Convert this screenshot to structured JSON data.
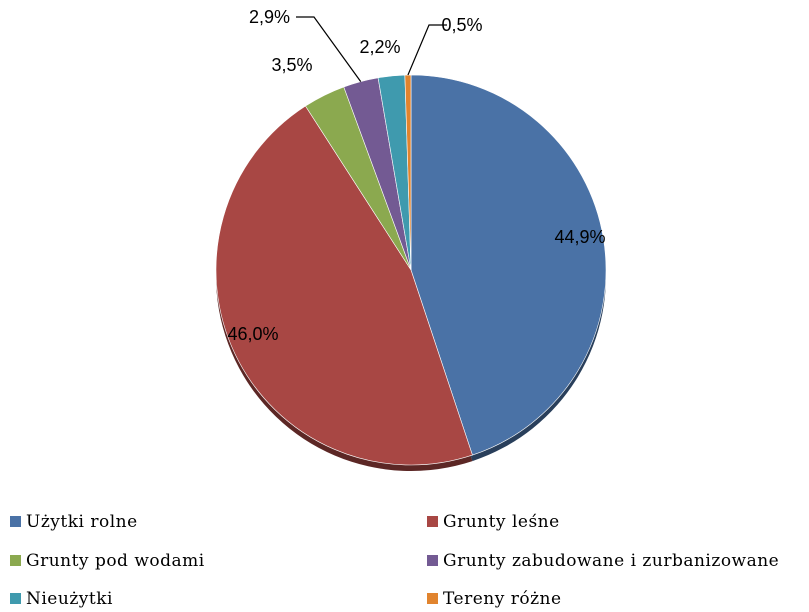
{
  "chart_data": {
    "type": "pie",
    "unit": "%",
    "slices": [
      {
        "name": "Użytki rolne",
        "value": 44.9,
        "label": "44,9%",
        "color": "#4A72A6"
      },
      {
        "name": "Grunty leśne",
        "value": 46.0,
        "label": "46,0%",
        "color": "#A84744"
      },
      {
        "name": "Grunty pod wodami",
        "value": 3.5,
        "label": "3,5%",
        "color": "#8BA94F"
      },
      {
        "name": "Grunty zabudowane i zurbanizowane",
        "value": 2.9,
        "label": "2,9%",
        "color": "#735A93"
      },
      {
        "name": "Nieużytki",
        "value": 2.2,
        "label": "2,2%",
        "color": "#3F9AAE"
      },
      {
        "name": "Tereny różne",
        "value": 0.5,
        "label": "0,5%",
        "color": "#E1842E"
      }
    ],
    "start_angle_deg": 0,
    "direction": "clockwise",
    "legend_position": "bottom",
    "title": ""
  }
}
